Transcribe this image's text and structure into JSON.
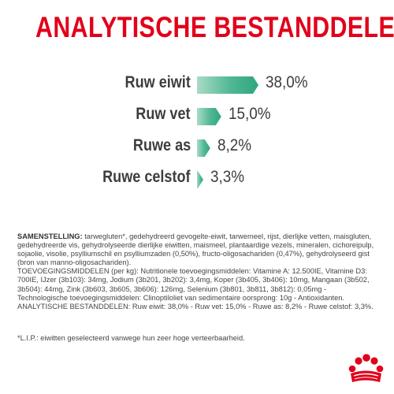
{
  "title": "ANALYTISCHE BESTANDDELEN",
  "analytics": [
    {
      "label": "Ruw eiwit",
      "value": "38,0%",
      "percent": 38.0
    },
    {
      "label": "Ruw vet",
      "value": "15,0%",
      "percent": 15.0
    },
    {
      "label": "Ruwe as",
      "value": "8,2%",
      "percent": 8.2
    },
    {
      "label": "Ruwe celstof",
      "value": "3,3%",
      "percent": 3.3
    }
  ],
  "composition": {
    "heading": "SAMENSTELLING:",
    "text": " tarwegluten*, gedehydreerd gevogelte-eiwit, tarwemeel, rijst, dierlijke vetten, maisgluten, gedehydreerde vis, gehydrolyseerde dierlijke eiwitten, maismeel, plantaardige vezels, mineralen, cichoreipulp, sojaolie, visolie, psylliumschil en psylliumzaden (0,50%), fructo-oligosachariden (0,47%), gehydrolyseerd gist (bron van manno-oligosachariden).",
    "additives": "TOEVOEGINGSMIDDELEN (per kg): Nutritionele toevoegingsmiddelen: Vitamine A: 12.500IE, Vitamine D3: 700IE, IJzer (3b103): 34mg, Jodium (3b201, 3b202): 3,4mg, Koper (3b405, 3b406): 10mg, Mangaan (3b502, 3b504): 44mg, Zink (3b603, 3b605, 3b606): 126mg, Selenium (3b801, 3b811, 3b812): 0,05mg - Technologische toevoegingsmiddelen: Clinoptiloliet van sedimentaire oorsprong: 10g - Antioxidanten.",
    "analysis": "ANALYTISCHE BESTANDDELEN: Ruw eiwit: 38,0% - Ruw vet: 15,0% - Ruwe as: 8,2% - Ruwe celstof: 3,3%."
  },
  "footnote": "*L.I.P.: eiwitten geselecteerd vanwege hun zeer hoge verteerbaarheid.",
  "colors": {
    "title": "#e2001a",
    "bar": "#4fb794",
    "logo": "#e2001a"
  },
  "logo_icon": "royal-canin-crown-icon"
}
